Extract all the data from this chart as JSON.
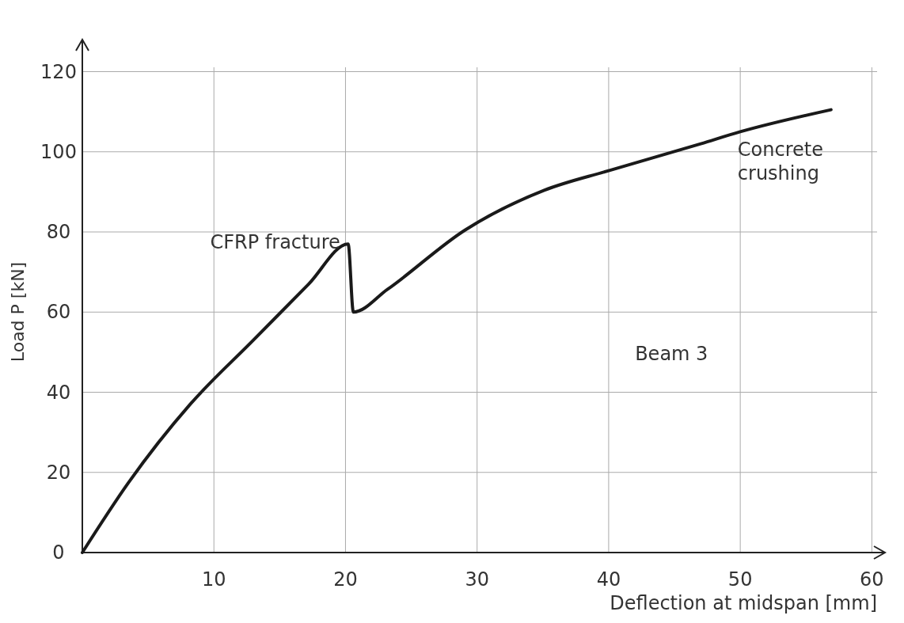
{
  "chart_data": {
    "type": "line",
    "xlabel": "Deflection at midspan [mm]",
    "ylabel": "Load P [kN]",
    "x": [
      0,
      3.5,
      8.2,
      13,
      17.2,
      20.2,
      20.6,
      23.2,
      29.1,
      35.1,
      40,
      47,
      50,
      56.9
    ],
    "series": [
      {
        "color": "#1a1a1a",
        "values": [
          0,
          17.4,
          37,
          53,
          67,
          77,
          60,
          65.7,
          80.5,
          90.4,
          95.3,
          102,
          105,
          110.5
        ]
      }
    ],
    "xlim": [
      0,
      61
    ],
    "ylim": [
      0,
      128
    ],
    "xticks": [
      10,
      20,
      30,
      40,
      50,
      60
    ],
    "yticks": [
      0,
      20,
      40,
      60,
      80,
      100,
      120
    ],
    "grid": true,
    "annotations": [
      {
        "text": "CFRP fracture",
        "x": 20.2,
        "y": 77
      },
      "Concrete\ncrushing",
      "Beam 3"
    ]
  }
}
